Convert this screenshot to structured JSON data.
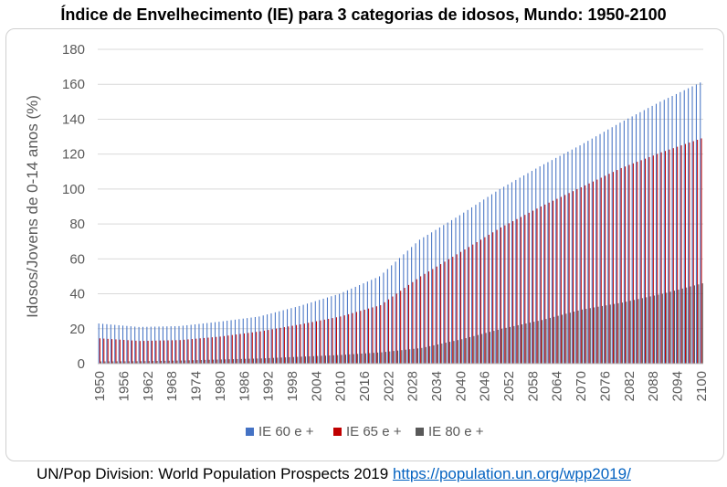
{
  "title": "Índice de Envelhecimento (IE) para 3 categorias de idosos, Mundo: 1950-2100",
  "source": {
    "text": "UN/Pop Division: World Population Prospects 2019",
    "link": "https://population.un.org/wpp2019/"
  },
  "chart_data": {
    "type": "bar",
    "ylabel": "Idosos/Jovens de 0-14 anos (%)",
    "xlabel": "",
    "ylim": [
      0,
      180
    ],
    "yticks": [
      0,
      20,
      40,
      60,
      80,
      100,
      120,
      140,
      160,
      180
    ],
    "x_range": [
      1950,
      2100
    ],
    "xtick_labels": [
      "1950",
      "1956",
      "1962",
      "1968",
      "1974",
      "1980",
      "1986",
      "1992",
      "1998",
      "2004",
      "2010",
      "2016",
      "2022",
      "2028",
      "2034",
      "2040",
      "2046",
      "2052",
      "2058",
      "2064",
      "2070",
      "2076",
      "2082",
      "2088",
      "2094",
      "2100"
    ],
    "grid": "horizontal",
    "legend_position": "bottom",
    "series": [
      {
        "name": "IE 60 e +",
        "color": "#4472c4",
        "anchors": {
          "years": [
            1950,
            1960,
            1970,
            1980,
            1990,
            2000,
            2010,
            2020,
            2030,
            2040,
            2050,
            2060,
            2070,
            2080,
            2090,
            2100
          ],
          "values": [
            23,
            21,
            21.5,
            24,
            27,
            33,
            40,
            50,
            71,
            85,
            100,
            113,
            125,
            138,
            150,
            161
          ]
        }
      },
      {
        "name": "IE 65 e +",
        "color": "#c00000",
        "anchors": {
          "years": [
            1950,
            1960,
            1970,
            1980,
            1990,
            2000,
            2010,
            2020,
            2030,
            2040,
            2050,
            2060,
            2070,
            2080,
            2090,
            2100
          ],
          "values": [
            14.5,
            13,
            13.5,
            15.5,
            18.5,
            22.5,
            27,
            33.5,
            50,
            64,
            78,
            90,
            101,
            112,
            121,
            129
          ]
        }
      },
      {
        "name": "IE 80 e +",
        "color": "#595959",
        "anchors": {
          "years": [
            1950,
            1960,
            1970,
            1980,
            1990,
            2000,
            2010,
            2020,
            2030,
            2040,
            2050,
            2060,
            2070,
            2080,
            2090,
            2100
          ],
          "values": [
            1.3,
            1.4,
            1.8,
            2.4,
            3,
            4,
            5,
            6.5,
            9,
            14,
            20,
            25,
            31,
            35,
            40,
            46
          ]
        }
      }
    ]
  }
}
